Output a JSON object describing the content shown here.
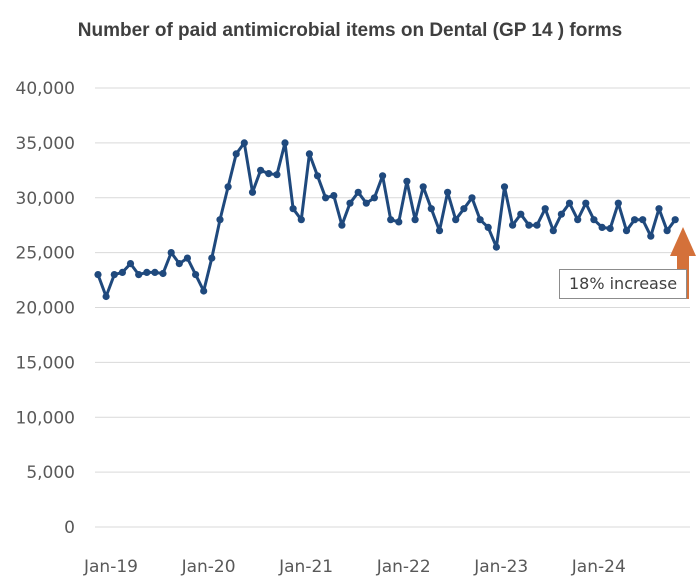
{
  "chart_data": {
    "type": "line",
    "title": "Number of paid antimicrobial items on Dental (GP 14 ) forms",
    "xlabel": "",
    "ylabel": "",
    "ylim": [
      0,
      40000
    ],
    "y_ticks": [
      "0",
      "5,000",
      "10,000",
      "15,000",
      "20,000",
      "25,000",
      "30,000",
      "35,000",
      "40,000"
    ],
    "x_ticks": [
      "Jan-19",
      "Jan-20",
      "Jan-21",
      "Jan-22",
      "Jan-23",
      "Jan-24"
    ],
    "grid": true,
    "series": [
      {
        "color": "#1f497d",
        "values": [
          23000,
          21000,
          23000,
          23200,
          24000,
          23000,
          23200,
          23200,
          23100,
          25000,
          24000,
          24500,
          23000,
          21500,
          24500,
          28000,
          31000,
          34000,
          35000,
          30500,
          32500,
          32200,
          32100,
          35000,
          29000,
          28000,
          34000,
          32000,
          30000,
          30200,
          27500,
          29500,
          30500,
          29500,
          30000,
          32000,
          28000,
          27800,
          31500,
          28000,
          31000,
          29000,
          27000,
          30500,
          28000,
          29000,
          30000,
          28000,
          27300,
          25500,
          31000,
          27500,
          28500,
          27500,
          27500,
          29000,
          27000,
          28500,
          29500,
          28000,
          29500,
          28000,
          27300,
          27200,
          29500,
          27000,
          28000,
          28000,
          26500,
          29000,
          27000,
          28000
        ]
      }
    ],
    "annotation": {
      "text": "18% increase",
      "arrow_color": "#d4713a"
    }
  }
}
